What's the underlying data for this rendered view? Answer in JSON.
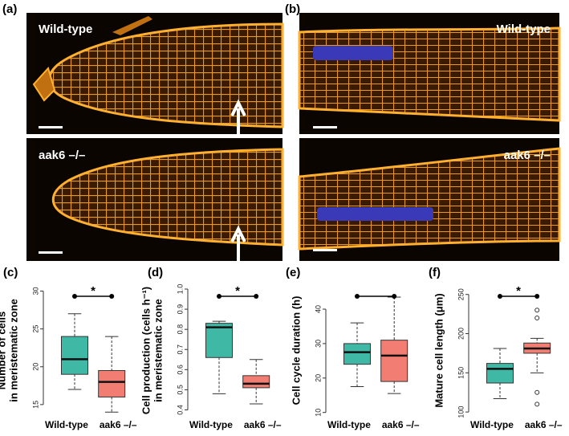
{
  "panels": {
    "a": {
      "label": "(a)",
      "top": "Wild-type",
      "bottom": "aak6 –/–"
    },
    "b": {
      "label": "(b)",
      "top": "Wild-type",
      "bottom": "aak6 –/–"
    }
  },
  "chart_data": [
    {
      "type": "box",
      "panel": "(c)",
      "ylabel": [
        "Number of cells",
        "in meristematic zone"
      ],
      "categories": [
        "Wild-type",
        "aak6 –/–"
      ],
      "colors": [
        "#3fb8a6",
        "#f27e73"
      ],
      "boxes": [
        {
          "min": 17,
          "q1": 19,
          "median": 21,
          "q3": 24,
          "max": 27,
          "outliers": []
        },
        {
          "min": 14,
          "q1": 16,
          "median": 18,
          "q3": 19.5,
          "max": 24,
          "outliers": []
        }
      ],
      "ylim": [
        13.5,
        30.8
      ],
      "yticks": [
        15,
        20,
        25,
        30
      ],
      "significance_bracket": true,
      "annotation": "*"
    },
    {
      "type": "box",
      "panel": "(d)",
      "ylabel": [
        "Cell production (cells h⁻¹)",
        "in meristematic zone"
      ],
      "categories": [
        "Wild-type",
        "aak6 –/–"
      ],
      "colors": [
        "#3fb8a6",
        "#f27e73"
      ],
      "boxes": [
        {
          "min": 0.48,
          "q1": 0.66,
          "median": 0.81,
          "q3": 0.83,
          "max": 0.84,
          "outliers": []
        },
        {
          "min": 0.43,
          "q1": 0.51,
          "median": 0.53,
          "q3": 0.57,
          "max": 0.65,
          "outliers": []
        }
      ],
      "ylim": [
        0.37,
        1.02
      ],
      "yticks": [
        {
          "value": 0.4,
          "label": "0.4"
        },
        {
          "value": 0.5,
          "label": "0.5"
        },
        {
          "value": 0.6,
          "label": "0.6"
        },
        {
          "value": 0.7,
          "label": "0.7"
        },
        {
          "value": 0.8,
          "label": "0.8"
        },
        {
          "value": 0.9,
          "label": "0.9"
        },
        {
          "value": 1,
          "label": "1.0"
        }
      ],
      "significance_bracket": true,
      "annotation": "*"
    },
    {
      "type": "box",
      "panel": "(e)",
      "ylabel": [
        "Cell cycle duration (h)"
      ],
      "categories": [
        "Wild-type",
        "aak6 –/–"
      ],
      "colors": [
        "#3fb8a6",
        "#f27e73"
      ],
      "boxes": [
        {
          "min": 17.5,
          "q1": 24,
          "median": 27.5,
          "q3": 30,
          "max": 36,
          "outliers": []
        },
        {
          "min": 15.5,
          "q1": 19,
          "median": 26.5,
          "q3": 31,
          "max": 43.5,
          "outliers": []
        }
      ],
      "ylim": [
        9,
        47
      ],
      "yticks": [
        10,
        20,
        30,
        40
      ],
      "significance_bracket": true
    },
    {
      "type": "box",
      "panel": "(f)",
      "ylabel": [
        "Mature cell length (μm)"
      ],
      "categories": [
        "Wild-type",
        "aak6 –/–"
      ],
      "colors": [
        "#3fb8a6",
        "#f27e73"
      ],
      "boxes": [
        {
          "min": 117,
          "q1": 137,
          "median": 155,
          "q3": 162,
          "max": 181,
          "outliers": []
        },
        {
          "min": 150,
          "q1": 175,
          "median": 181,
          "q3": 188,
          "max": 194,
          "outliers": [
            230,
            220,
            125,
            110
          ]
        }
      ],
      "ylim": [
        95,
        262
      ],
      "yticks": [
        100,
        150,
        200,
        250
      ],
      "significance_bracket": true,
      "annotation": "*"
    }
  ]
}
